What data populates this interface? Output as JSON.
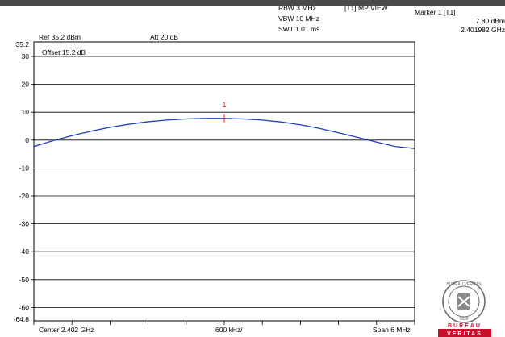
{
  "header": {
    "ref": "Ref 35.2 dBm",
    "att": "Att  20 dB",
    "offset": "Offset 15.2 dB",
    "rbw": "RBW 3 MHz",
    "vbw": "VBW 10 MHz",
    "swt": "SWT 1.01 ms",
    "trace_mode": "[T1] MP VIEW",
    "marker_title": "Marker 1 [T1]",
    "marker_level": "7.80 dBm",
    "marker_freq": "2.401982 GHz"
  },
  "footer": {
    "center": "Center 2.402 GHz",
    "div": "600 kHz/",
    "span": "Span 6 MHz"
  },
  "logo": {
    "ring_text": "BUREAU VERITAS",
    "year": "1828",
    "brand_line1": "BUREAU",
    "brand_line2": "VERITAS"
  },
  "colors": {
    "trace": "#1f3fbf",
    "marker": "#e02020",
    "grid": "#000000",
    "brand": "#c8102e"
  },
  "chart_data": {
    "type": "line",
    "xlabel": "",
    "ylabel": "",
    "x_divisions": 10,
    "ylim": [
      -64.8,
      35.2
    ],
    "y_ticks": [
      30,
      20,
      10,
      0,
      -10,
      -20,
      -30,
      -40,
      -50,
      -60
    ],
    "y_tick_labels": [
      "35.2",
      "30",
      "20",
      "10",
      "0",
      "-10",
      "-20",
      "-30",
      "-40",
      "-50",
      "-60",
      "-64.8"
    ],
    "series": [
      {
        "x": [
          0,
          0.5,
          1,
          1.5,
          2,
          2.5,
          3,
          3.5,
          4,
          4.5,
          5,
          5.5,
          6,
          6.5,
          7,
          7.5,
          8,
          8.5,
          9,
          9.5,
          10
        ],
        "y": [
          -2.3,
          -0.2,
          1.6,
          3.2,
          4.6,
          5.7,
          6.6,
          7.2,
          7.6,
          7.8,
          7.8,
          7.6,
          7.2,
          6.5,
          5.5,
          4.2,
          2.6,
          1.0,
          -0.7,
          -2.3,
          -3.0
        ]
      }
    ],
    "markers": [
      {
        "label": "1",
        "x": 5,
        "y": 7.8
      }
    ],
    "grid": true
  }
}
